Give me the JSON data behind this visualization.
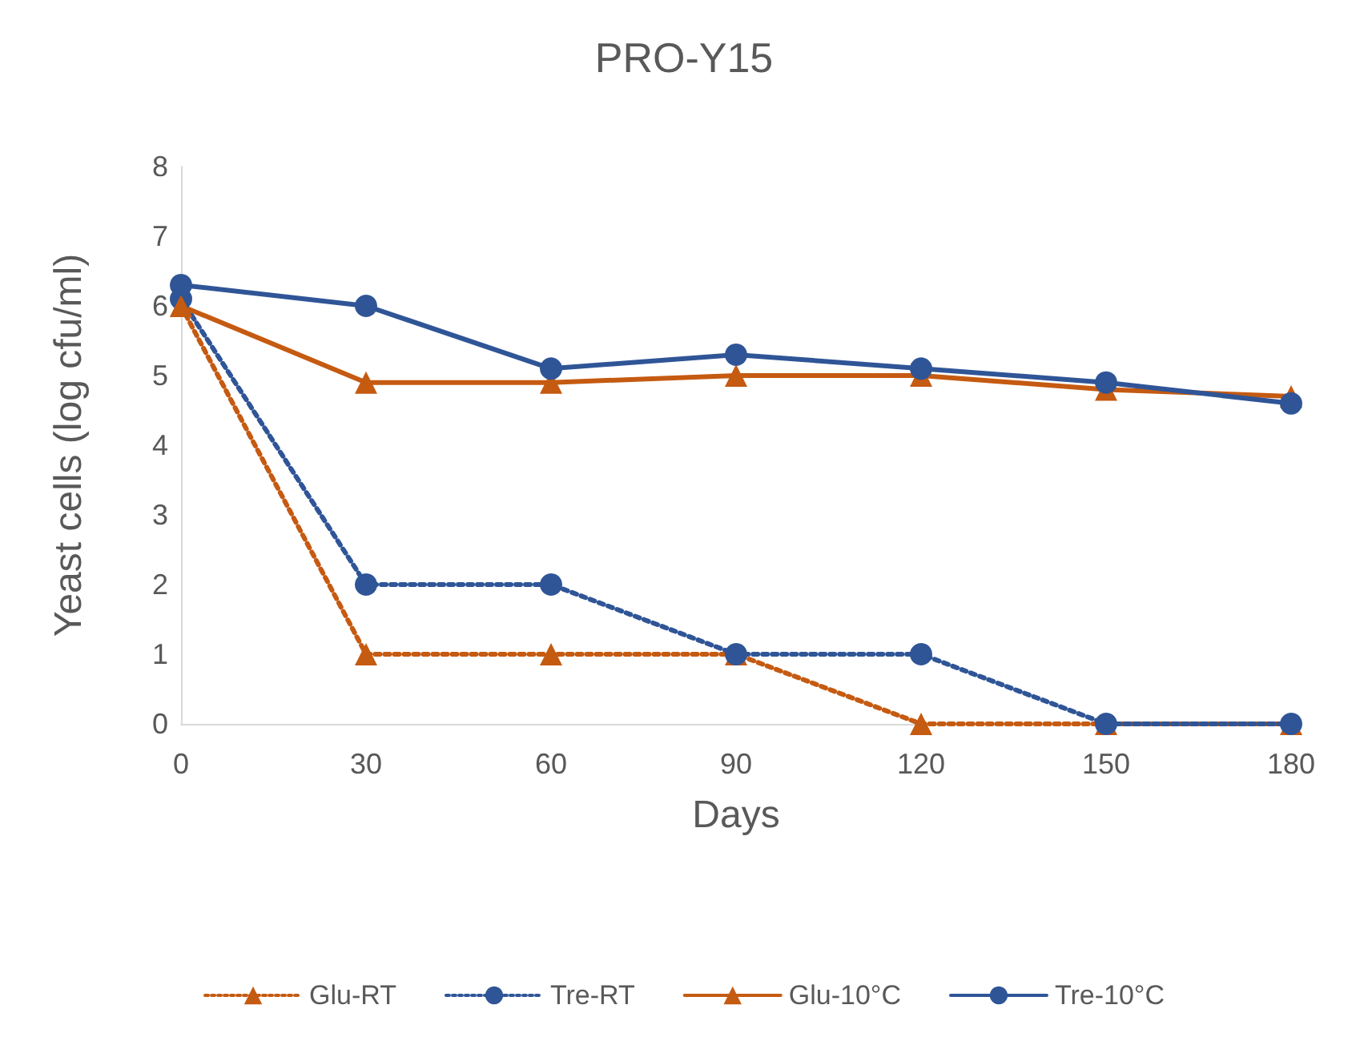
{
  "chart_data": {
    "type": "line",
    "title": "PRO-Y15",
    "xlabel": "Days",
    "ylabel": "Yeast cells (log cfu/ml)",
    "categories": [
      "0",
      "30",
      "60",
      "90",
      "120",
      "150",
      "180"
    ],
    "series": [
      {
        "name": "Glu-RT",
        "color": "#c55a11",
        "marker": "triangle",
        "line_style": "dotted",
        "values": [
          6.0,
          1,
          1,
          1,
          0,
          0,
          0
        ]
      },
      {
        "name": "Tre-RT",
        "color": "#2f5597",
        "marker": "circle",
        "line_style": "dotted",
        "values": [
          6.1,
          2,
          2,
          1,
          1,
          0,
          0
        ]
      },
      {
        "name": "Glu-10°C",
        "color": "#c55a11",
        "marker": "triangle",
        "line_style": "solid",
        "values": [
          6.0,
          4.9,
          4.9,
          5.0,
          5.0,
          4.8,
          4.7
        ]
      },
      {
        "name": "Tre-10°C",
        "color": "#2f5597",
        "marker": "circle",
        "line_style": "solid",
        "values": [
          6.3,
          6.0,
          5.1,
          5.3,
          5.1,
          4.9,
          4.6
        ]
      }
    ],
    "ylim": [
      0,
      8
    ],
    "yticks": [
      0,
      1,
      2,
      3,
      4,
      5,
      6,
      7,
      8
    ],
    "grid": false,
    "legend": "bottom"
  }
}
